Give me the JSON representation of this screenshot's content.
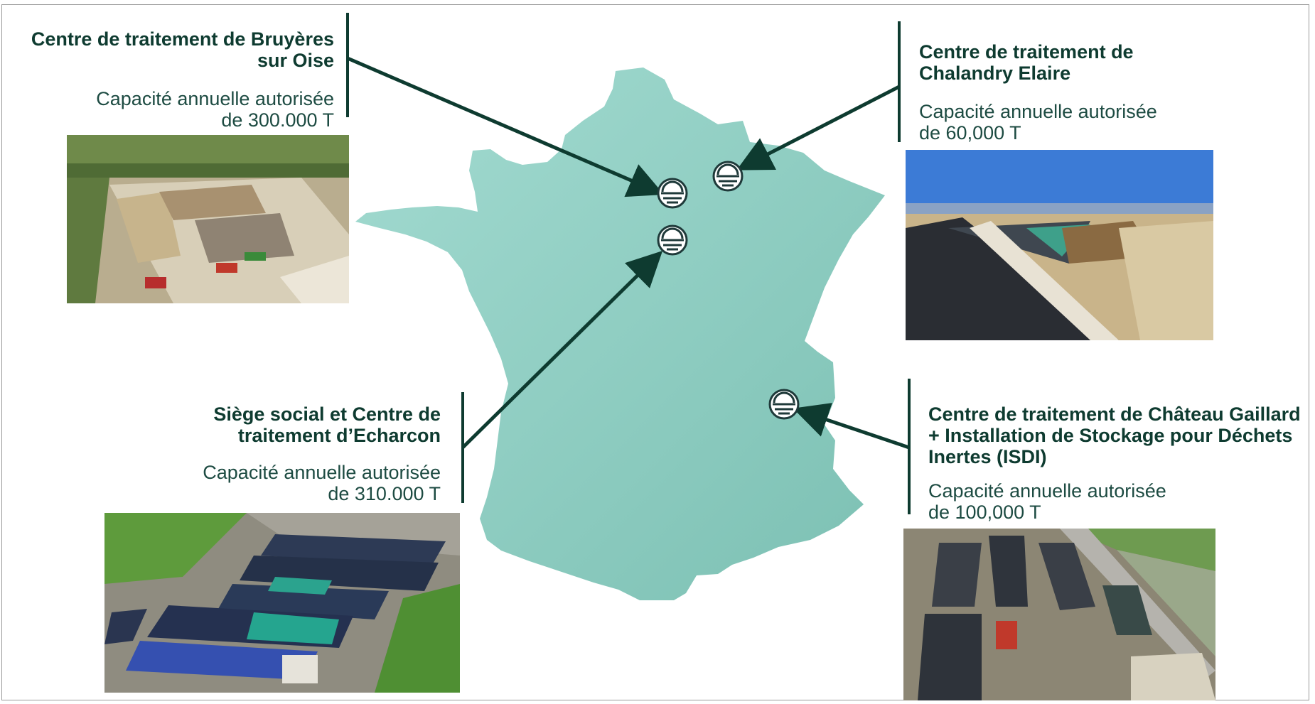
{
  "sites": [
    {
      "title_line1": "Centre de traitement de Bruyères",
      "title_line2": "sur Oise",
      "capacity_line1": "Capacité annuelle autorisée",
      "capacity_line2": "de 300.000 T",
      "photo": "aerial-photo-quarry-stockpiles"
    },
    {
      "title_line1": "Centre de traitement de",
      "title_line2": "Chalandry Elaire",
      "capacity_line1": "Capacité annuelle autorisée",
      "capacity_line2": "de 60,000 T",
      "photo": "aerial-photo-covered-embankment"
    },
    {
      "title_line1": "Siège social et Centre de",
      "title_line2": "traitement d’Echarcon",
      "capacity_line1": "Capacité annuelle autorisée",
      "capacity_line2": "de 310.000 T",
      "photo": "aerial-photo-tarped-stockpiles"
    },
    {
      "title_line1": "Centre de traitement de Château Gaillard",
      "title_line2": "+ Installation de Stockage pour Déchets",
      "title_line3": "Inertes (ISDI)",
      "capacity_line1": "Capacité annuelle autorisée",
      "capacity_line2": "de 100,000 T",
      "photo": "aerial-photo-storage-facility"
    }
  ],
  "map": {
    "region": "France",
    "fill_color": "#8fd0c4",
    "marker_icon": "company-logo-icon",
    "accent_color": "#0e3b30"
  }
}
